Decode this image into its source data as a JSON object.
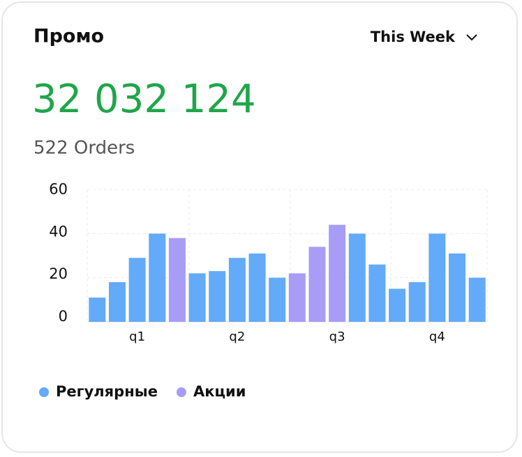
{
  "header": {
    "title": "Промо",
    "period": "This Week"
  },
  "total": "32 032 124",
  "orders": "522 Orders",
  "chart_data": {
    "type": "bar",
    "categories": [
      null,
      null,
      "q1",
      null,
      null,
      null,
      null,
      "q2",
      null,
      null,
      null,
      null,
      "q3",
      null,
      null,
      null,
      null,
      "q4",
      null,
      null
    ],
    "series": [
      {
        "name": "Регулярные",
        "color": "#63aaf9",
        "values": [
          11,
          18,
          29,
          40,
          null,
          22,
          23,
          29,
          31,
          20,
          null,
          null,
          null,
          40,
          26,
          15,
          18,
          40,
          31,
          20
        ]
      },
      {
        "name": "Акции",
        "color": "#a89cf7",
        "values": [
          null,
          null,
          null,
          null,
          38,
          null,
          null,
          null,
          null,
          null,
          22,
          34,
          44,
          null,
          null,
          null,
          null,
          null,
          null,
          null
        ]
      }
    ],
    "ylim": [
      0,
      60
    ],
    "yticks": [
      0,
      20,
      40,
      60
    ],
    "grid": true
  }
}
